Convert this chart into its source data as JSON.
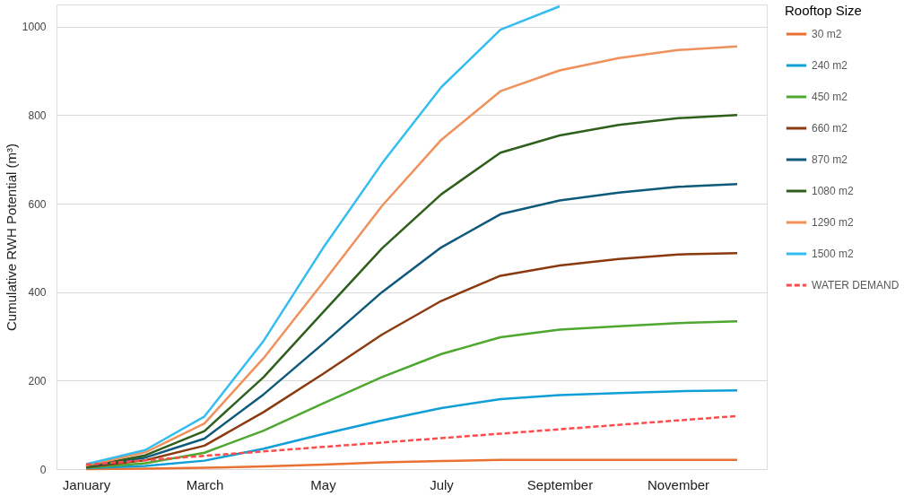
{
  "chart_data": {
    "type": "line",
    "ylabel": "Cumulative RWH Potential (m³)",
    "legend_title": "Rooftop Size",
    "categories": [
      "January",
      null,
      "March",
      null,
      "May",
      null,
      "July",
      null,
      "September",
      null,
      "November",
      null
    ],
    "ylim": [
      0,
      1050
    ],
    "yticks": [
      0,
      200,
      400,
      600,
      800,
      1000
    ],
    "grid": "y",
    "legend": "right",
    "series": [
      {
        "name": "30 m2",
        "color": "#e97132",
        "line_style": "solid",
        "values": [
          0,
          1,
          3,
          6,
          10,
          15,
          18,
          21,
          21,
          21,
          21,
          21
        ]
      },
      {
        "name": "240 m2",
        "color": "#0f9ed5",
        "line_style": "solid",
        "values": [
          2,
          7,
          19,
          46,
          79,
          110,
          138,
          158,
          167,
          172,
          176,
          178
        ]
      },
      {
        "name": "450 m2",
        "color": "#4ea72e",
        "line_style": "solid",
        "values": [
          3,
          13,
          37,
          87,
          148,
          208,
          260,
          298,
          315,
          323,
          330,
          334
        ]
      },
      {
        "name": "660 m2",
        "color": "#8b3a0f",
        "line_style": "solid",
        "values": [
          4,
          20,
          53,
          129,
          215,
          304,
          380,
          437,
          460,
          475,
          485,
          488
        ]
      },
      {
        "name": "870 m2",
        "color": "#0e5a7a",
        "line_style": "solid",
        "values": [
          5,
          26,
          69,
          169,
          283,
          400,
          501,
          576,
          607,
          625,
          638,
          644
        ]
      },
      {
        "name": "1080 m2",
        "color": "#2e5f1b",
        "line_style": "solid",
        "values": [
          5,
          31,
          86,
          208,
          354,
          499,
          621,
          715,
          754,
          778,
          793,
          800
        ]
      },
      {
        "name": "1290 m2",
        "color": "#f0905a",
        "line_style": "solid",
        "values": [
          8,
          38,
          103,
          251,
          421,
          595,
          744,
          854,
          901,
          929,
          947,
          955
        ]
      },
      {
        "name": "1500 m2",
        "color": "#33bdf0",
        "line_style": "solid",
        "values": [
          11,
          43,
          119,
          290,
          499,
          691,
          863,
          993,
          1046,
          null,
          null,
          null
        ]
      },
      {
        "name": "WATER DEMAND",
        "color": "#ff4b4b",
        "line_style": "dashed",
        "values": [
          10,
          20,
          30,
          40,
          50,
          60,
          70,
          80,
          90,
          100,
          110,
          120
        ]
      }
    ]
  }
}
